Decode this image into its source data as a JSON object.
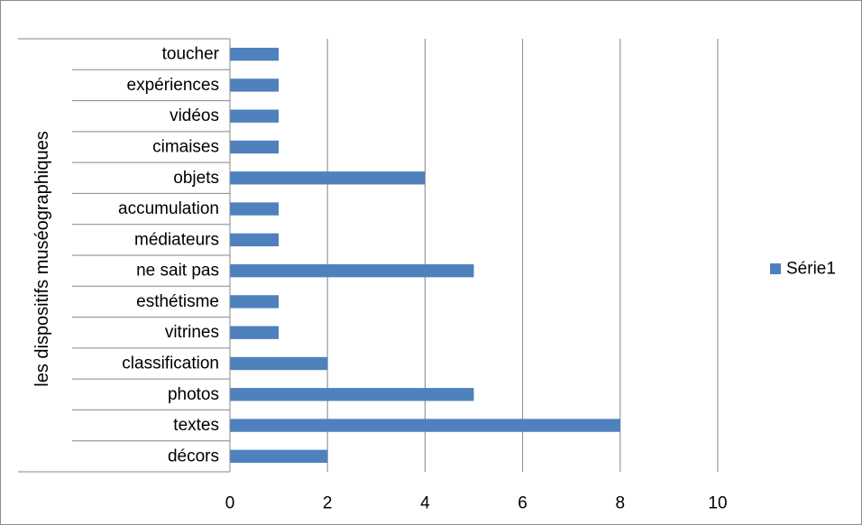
{
  "chart_data": {
    "type": "bar",
    "orientation": "horizontal",
    "title": "",
    "ylabel": "les dispositifs muséographiques",
    "xlabel": "",
    "categories": [
      "décors",
      "textes",
      "photos",
      "classification",
      "vitrines",
      "esthétisme",
      "ne sait pas",
      "médiateurs",
      "accumulation",
      "objets",
      "cimaises",
      "vidéos",
      "expériences",
      "toucher"
    ],
    "series": [
      {
        "name": "Série1",
        "values": [
          2,
          8,
          5,
          2,
          1,
          1,
          5,
          1,
          1,
          4,
          1,
          1,
          1,
          1
        ],
        "color": "#4f81bd"
      }
    ],
    "xlim": [
      0,
      10
    ],
    "xticks": [
      "0",
      "2",
      "4",
      "6",
      "8",
      "10"
    ],
    "grid": "vertical major gridlines",
    "legend": "right"
  }
}
